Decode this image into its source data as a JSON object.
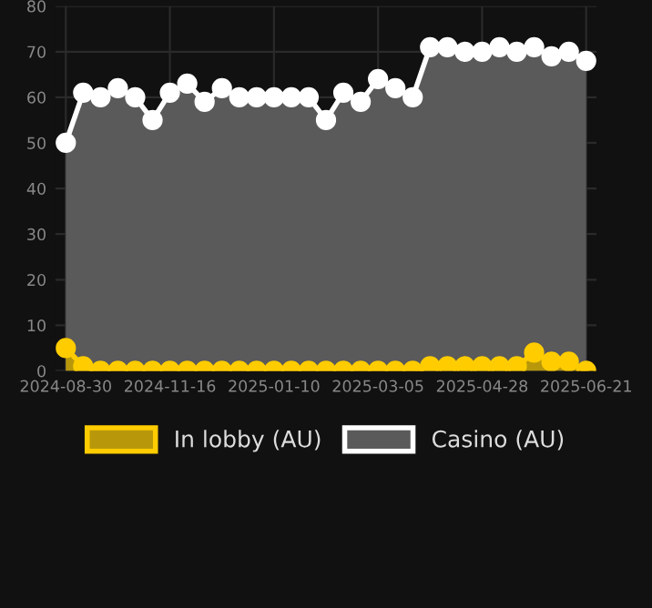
{
  "chart_data": {
    "type": "area",
    "categories": [
      "2024-08-30",
      null,
      null,
      null,
      null,
      null,
      "2024-11-16",
      null,
      null,
      null,
      null,
      null,
      "2025-01-10",
      null,
      null,
      null,
      null,
      null,
      "2025-03-05",
      null,
      null,
      null,
      null,
      null,
      "2025-04-28",
      null,
      null,
      null,
      null,
      null,
      "2025-06-21"
    ],
    "series": [
      {
        "name": "In lobby (AU)",
        "color": "#ffcc00",
        "values": [
          5,
          1,
          0,
          0,
          0,
          0,
          0,
          0,
          0,
          0,
          0,
          0,
          0,
          0,
          0,
          0,
          0,
          0,
          0,
          0,
          0,
          1,
          1,
          1,
          1,
          1,
          1,
          4,
          2,
          2,
          0
        ]
      },
      {
        "name": "Casino (AU)",
        "color": "#ffffff",
        "values": [
          50,
          61,
          60,
          62,
          60,
          55,
          61,
          63,
          59,
          62,
          60,
          60,
          60,
          60,
          60,
          55,
          61,
          59,
          64,
          62,
          60,
          71,
          71,
          70,
          70,
          71,
          70,
          71,
          69,
          70,
          68
        ]
      }
    ],
    "ylim": [
      0,
      80
    ],
    "yticks": [
      0,
      10,
      20,
      30,
      40,
      50,
      60,
      70,
      80
    ],
    "grid": true,
    "legend": "bottom",
    "marker": "circle"
  }
}
